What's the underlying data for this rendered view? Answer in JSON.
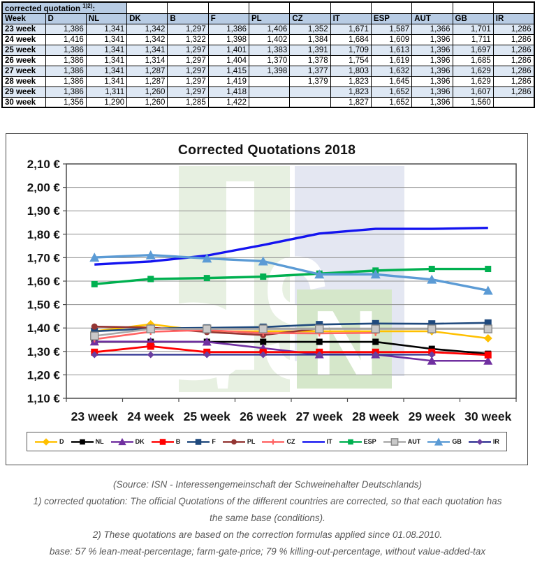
{
  "table": {
    "caption": {
      "label": "corrected quotation ",
      "sup": "1)2)",
      "suffix": ":"
    },
    "columns": [
      "Week",
      "D",
      "NL",
      "DK",
      "B",
      "F",
      "PL",
      "CZ",
      "IT",
      "ESP",
      "AUT",
      "GB",
      "IR"
    ],
    "rows": [
      {
        "week": "23 week",
        "values": [
          "1,386",
          "1,341",
          "1,342",
          "1,297",
          "1,386",
          "1,406",
          "1,352",
          "1,671",
          "1,587",
          "1,366",
          "1,701",
          "1,286"
        ]
      },
      {
        "week": "24 week",
        "values": [
          "1,416",
          "1,341",
          "1,342",
          "1,322",
          "1,398",
          "1,402",
          "1,384",
          "1,684",
          "1,609",
          "1,396",
          "1,711",
          "1,286"
        ]
      },
      {
        "week": "25 week",
        "values": [
          "1,386",
          "1,341",
          "1,341",
          "1,297",
          "1,401",
          "1,383",
          "1,391",
          "1,709",
          "1,613",
          "1,396",
          "1,697",
          "1,286"
        ]
      },
      {
        "week": "26 week",
        "values": [
          "1,386",
          "1,341",
          "1,314",
          "1,297",
          "1,404",
          "1,370",
          "1,378",
          "1,754",
          "1,619",
          "1,396",
          "1,685",
          "1,286"
        ]
      },
      {
        "week": "27 week",
        "values": [
          "1,386",
          "1,341",
          "1,287",
          "1,297",
          "1,415",
          "1,398",
          "1,377",
          "1,803",
          "1,632",
          "1,396",
          "1,629",
          "1,286"
        ]
      },
      {
        "week": "28 week",
        "values": [
          "1,386",
          "1,341",
          "1,287",
          "1,297",
          "1,419",
          "",
          "1,379",
          "1,823",
          "1,645",
          "1,396",
          "1,629",
          "1,286"
        ]
      },
      {
        "week": "29 week",
        "values": [
          "1,386",
          "1,311",
          "1,260",
          "1,297",
          "1,418",
          "",
          "",
          "1,823",
          "1,652",
          "1,396",
          "1,607",
          "1,286"
        ]
      },
      {
        "week": "30 week",
        "values": [
          "1,356",
          "1,290",
          "1,260",
          "1,285",
          "1,422",
          "",
          "",
          "1,827",
          "1,652",
          "1,396",
          "1,560",
          ""
        ]
      }
    ]
  },
  "chart_data": {
    "type": "line",
    "title": "Corrected Quotations 2018",
    "categories": [
      "23 week",
      "24 week",
      "25 week",
      "26 week",
      "27 week",
      "28 week",
      "29 week",
      "30 week"
    ],
    "ylim": [
      1.1,
      2.1
    ],
    "y_step": 0.1,
    "y_tick_labels": [
      "2,10 €",
      "2,00 €",
      "1,90 €",
      "1,80 €",
      "1,70 €",
      "1,60 €",
      "1,50 €",
      "1,40 €",
      "1,30 €",
      "1,20 €",
      "1,10 €"
    ],
    "grid": true,
    "legend_position": "bottom",
    "series": [
      {
        "name": "D",
        "color": "#FFC000",
        "marker": "diamond",
        "width": 2.6,
        "marker_size": 5,
        "values": [
          1.386,
          1.416,
          1.386,
          1.386,
          1.386,
          1.386,
          1.386,
          1.356
        ]
      },
      {
        "name": "NL",
        "color": "#000000",
        "marker": "square",
        "width": 2.6,
        "marker_size": 4.5,
        "values": [
          1.341,
          1.341,
          1.341,
          1.341,
          1.341,
          1.341,
          1.311,
          1.29
        ]
      },
      {
        "name": "DK",
        "color": "#7030A0",
        "marker": "triangle",
        "width": 2.6,
        "marker_size": 5.5,
        "values": [
          1.342,
          1.342,
          1.341,
          1.314,
          1.287,
          1.287,
          1.26,
          1.26
        ]
      },
      {
        "name": "B",
        "color": "#FF0000",
        "marker": "square",
        "width": 2.8,
        "marker_size": 5,
        "values": [
          1.297,
          1.322,
          1.297,
          1.297,
          1.297,
          1.297,
          1.297,
          1.285
        ]
      },
      {
        "name": "F",
        "color": "#1F497D",
        "marker": "square",
        "width": 2.6,
        "marker_size": 5,
        "values": [
          1.386,
          1.398,
          1.401,
          1.404,
          1.415,
          1.419,
          1.418,
          1.422
        ]
      },
      {
        "name": "PL",
        "color": "#943634",
        "marker": "circle",
        "width": 2.6,
        "marker_size": 4.5,
        "values": [
          1.406,
          1.402,
          1.383,
          1.37,
          1.398,
          null,
          null,
          null
        ]
      },
      {
        "name": "CZ",
        "color": "#FF6464",
        "marker": "plus",
        "width": 2.6,
        "marker_size": 4.5,
        "values": [
          1.352,
          1.384,
          1.391,
          1.378,
          1.377,
          1.379,
          null,
          null
        ]
      },
      {
        "name": "IT",
        "color": "#1414F0",
        "marker": "none",
        "width": 3.4,
        "marker_size": 0,
        "values": [
          1.671,
          1.684,
          1.709,
          1.754,
          1.803,
          1.823,
          1.823,
          1.827
        ]
      },
      {
        "name": "ESP",
        "color": "#00B050",
        "marker": "square",
        "width": 3.4,
        "marker_size": 4.5,
        "values": [
          1.587,
          1.609,
          1.613,
          1.619,
          1.632,
          1.645,
          1.652,
          1.652
        ]
      },
      {
        "name": "AUT",
        "color": "#A8A8A8",
        "marker": "square-open",
        "width": 2.6,
        "marker_size": 5.5,
        "values": [
          1.366,
          1.396,
          1.396,
          1.396,
          1.396,
          1.396,
          1.396,
          1.396
        ]
      },
      {
        "name": "GB",
        "color": "#5B9BD5",
        "marker": "triangle",
        "width": 3.4,
        "marker_size": 6,
        "values": [
          1.701,
          1.711,
          1.697,
          1.685,
          1.629,
          1.629,
          1.607,
          1.56
        ]
      },
      {
        "name": "IR",
        "color": "#2E3192",
        "marker": "diamond",
        "width": 2.2,
        "marker_size": 4,
        "marker_color": "#6A3FA0",
        "values": [
          1.286,
          1.286,
          1.286,
          1.286,
          1.286,
          1.286,
          1.286,
          null
        ]
      }
    ]
  },
  "watermark": {
    "text": "ISN",
    "band_green": "#E7F0E1",
    "band_blue": "#E4E7F2",
    "block_green": "#D5E7CA"
  },
  "footer": {
    "lines": [
      "(Source: ISN - Interessengemeinschaft der Schweinehalter Deutschlands)",
      "1) corrected quotation: The official Quotations of the different countries are corrected, so that each quotation has",
      "the same base (conditions).",
      "2) These quotations are based on the correction formulas applied since 01.08.2010.",
      "base: 57 % lean-meat-percentage; farm-gate-price; 79 % killing-out-percentage, without value-added-tax"
    ]
  }
}
